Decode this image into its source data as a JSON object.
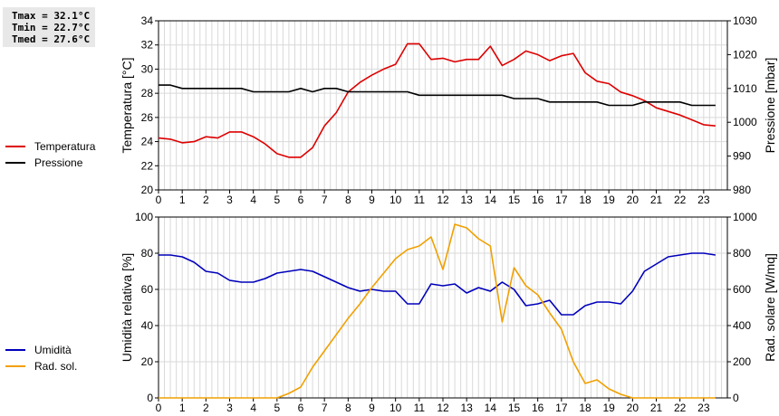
{
  "stats": {
    "tmax": "Tmax = 32.1°C",
    "tmin": "Tmin = 22.7°C",
    "tmed": "Tmed = 27.6°C"
  },
  "chart_data": [
    {
      "type": "line",
      "xlabel": "",
      "xlim": [
        0,
        24
      ],
      "xticks": [
        "0",
        "1",
        "2",
        "3",
        "4",
        "5",
        "6",
        "7",
        "8",
        "9",
        "10",
        "11",
        "12",
        "13",
        "14",
        "15",
        "16",
        "17",
        "18",
        "19",
        "20",
        "21",
        "22",
        "23"
      ],
      "grid": true,
      "left_axis": {
        "label": "Temperatura [°C]",
        "ylim": [
          20,
          34
        ],
        "ticks": [
          20,
          22,
          24,
          26,
          28,
          30,
          32,
          34
        ]
      },
      "right_axis": {
        "label": "Pressione [mbar]",
        "ylim": [
          980,
          1030
        ],
        "ticks": [
          980,
          990,
          1000,
          1010,
          1020,
          1030
        ]
      },
      "legend": {
        "placement": "left",
        "entries": [
          "Temperatura",
          "Pressione"
        ]
      },
      "series": [
        {
          "name": "Temperatura",
          "axis": "left",
          "color": "#dd0000",
          "x": [
            0,
            0.5,
            1,
            1.5,
            2,
            2.5,
            3,
            3.5,
            4,
            4.5,
            5,
            5.5,
            6,
            6.5,
            7,
            7.5,
            8,
            8.5,
            9,
            9.5,
            10,
            10.5,
            11,
            11.5,
            12,
            12.5,
            13,
            13.5,
            14,
            14.5,
            15,
            15.5,
            16,
            16.5,
            17,
            17.5,
            18,
            18.5,
            19,
            19.5,
            20,
            20.5,
            21,
            21.5,
            22,
            22.5,
            23,
            23.5
          ],
          "y": [
            24.3,
            24.2,
            23.9,
            24.0,
            24.4,
            24.3,
            24.8,
            24.8,
            24.4,
            23.8,
            23.0,
            22.7,
            22.7,
            23.5,
            25.3,
            26.4,
            28.1,
            28.9,
            29.5,
            30.0,
            30.4,
            32.1,
            32.1,
            30.8,
            30.9,
            30.6,
            30.8,
            30.8,
            31.9,
            30.3,
            30.8,
            31.5,
            31.2,
            30.7,
            31.1,
            31.3,
            29.7,
            29.0,
            28.8,
            28.1,
            27.8,
            27.4,
            26.8,
            26.5,
            26.2,
            25.8,
            25.4,
            25.3
          ]
        },
        {
          "name": "Pressione",
          "axis": "right",
          "color": "#000000",
          "x": [
            0,
            0.5,
            1,
            1.5,
            2,
            2.5,
            3,
            3.5,
            4,
            4.5,
            5,
            5.5,
            6,
            6.5,
            7,
            7.5,
            8,
            8.5,
            9,
            9.5,
            10,
            10.5,
            11,
            11.5,
            12,
            12.5,
            13,
            13.5,
            14,
            14.5,
            15,
            15.5,
            16,
            16.5,
            17,
            17.5,
            18,
            18.5,
            19,
            19.5,
            20,
            20.5,
            21,
            21.5,
            22,
            22.5,
            23,
            23.5
          ],
          "y": [
            1011,
            1011,
            1010,
            1010,
            1010,
            1010,
            1010,
            1010,
            1009,
            1009,
            1009,
            1009,
            1010,
            1009,
            1010,
            1010,
            1009,
            1009,
            1009,
            1009,
            1009,
            1009,
            1008,
            1008,
            1008,
            1008,
            1008,
            1008,
            1008,
            1008,
            1007,
            1007,
            1007,
            1006,
            1006,
            1006,
            1006,
            1006,
            1005,
            1005,
            1005,
            1006,
            1006,
            1006,
            1006,
            1005,
            1005,
            1005
          ]
        }
      ]
    },
    {
      "type": "line",
      "xlabel": "",
      "xlim": [
        0,
        24
      ],
      "xticks": [
        "0",
        "1",
        "2",
        "3",
        "4",
        "5",
        "6",
        "7",
        "8",
        "9",
        "10",
        "11",
        "12",
        "13",
        "14",
        "15",
        "16",
        "17",
        "18",
        "19",
        "20",
        "21",
        "22",
        "23"
      ],
      "grid": true,
      "left_axis": {
        "label": "Umidità relativa [%]",
        "ylim": [
          0,
          100
        ],
        "ticks": [
          0,
          20,
          40,
          60,
          80,
          100
        ]
      },
      "right_axis": {
        "label": "Rad. solare [W/mq]",
        "ylim": [
          0,
          1000
        ],
        "ticks": [
          0,
          200,
          400,
          600,
          800,
          1000
        ]
      },
      "legend": {
        "placement": "left",
        "entries": [
          "Umidità",
          "Rad. sol."
        ]
      },
      "series": [
        {
          "name": "Umidità",
          "axis": "left",
          "color": "#0000bb",
          "x": [
            0,
            0.5,
            1,
            1.5,
            2,
            2.5,
            3,
            3.5,
            4,
            4.5,
            5,
            5.5,
            6,
            6.5,
            7,
            7.5,
            8,
            8.5,
            9,
            9.5,
            10,
            10.5,
            11,
            11.5,
            12,
            12.5,
            13,
            13.5,
            14,
            14.5,
            15,
            15.5,
            16,
            16.5,
            17,
            17.5,
            18,
            18.5,
            19,
            19.5,
            20,
            20.5,
            21,
            21.5,
            22,
            22.5,
            23,
            23.5
          ],
          "y": [
            79,
            79,
            78,
            75,
            70,
            69,
            65,
            64,
            64,
            66,
            69,
            70,
            71,
            70,
            67,
            64,
            61,
            59,
            60,
            59,
            59,
            52,
            52,
            63,
            62,
            63,
            58,
            61,
            59,
            64,
            60,
            51,
            52,
            54,
            46,
            46,
            51,
            53,
            53,
            52,
            59,
            70,
            74,
            78,
            79,
            80,
            80,
            79
          ]
        },
        {
          "name": "Rad. sol.",
          "axis": "right",
          "color": "#f0a000",
          "x": [
            0,
            0.5,
            1,
            1.5,
            2,
            2.5,
            3,
            3.5,
            4,
            4.5,
            5,
            5.5,
            6,
            6.5,
            7,
            7.5,
            8,
            8.5,
            9,
            9.5,
            10,
            10.5,
            11,
            11.5,
            12,
            12.5,
            13,
            13.5,
            14,
            14.5,
            15,
            15.5,
            16,
            16.5,
            17,
            17.5,
            18,
            18.5,
            19,
            19.5,
            20,
            20.5,
            21,
            21.5,
            22,
            22.5,
            23,
            23.5
          ],
          "y": [
            0,
            0,
            0,
            0,
            0,
            0,
            0,
            0,
            0,
            0,
            0,
            25,
            60,
            170,
            260,
            350,
            440,
            520,
            610,
            690,
            770,
            820,
            840,
            890,
            710,
            960,
            940,
            880,
            840,
            420,
            720,
            620,
            570,
            470,
            380,
            200,
            80,
            100,
            50,
            20,
            0,
            0,
            0,
            0,
            0,
            0,
            0,
            0
          ]
        }
      ]
    }
  ]
}
